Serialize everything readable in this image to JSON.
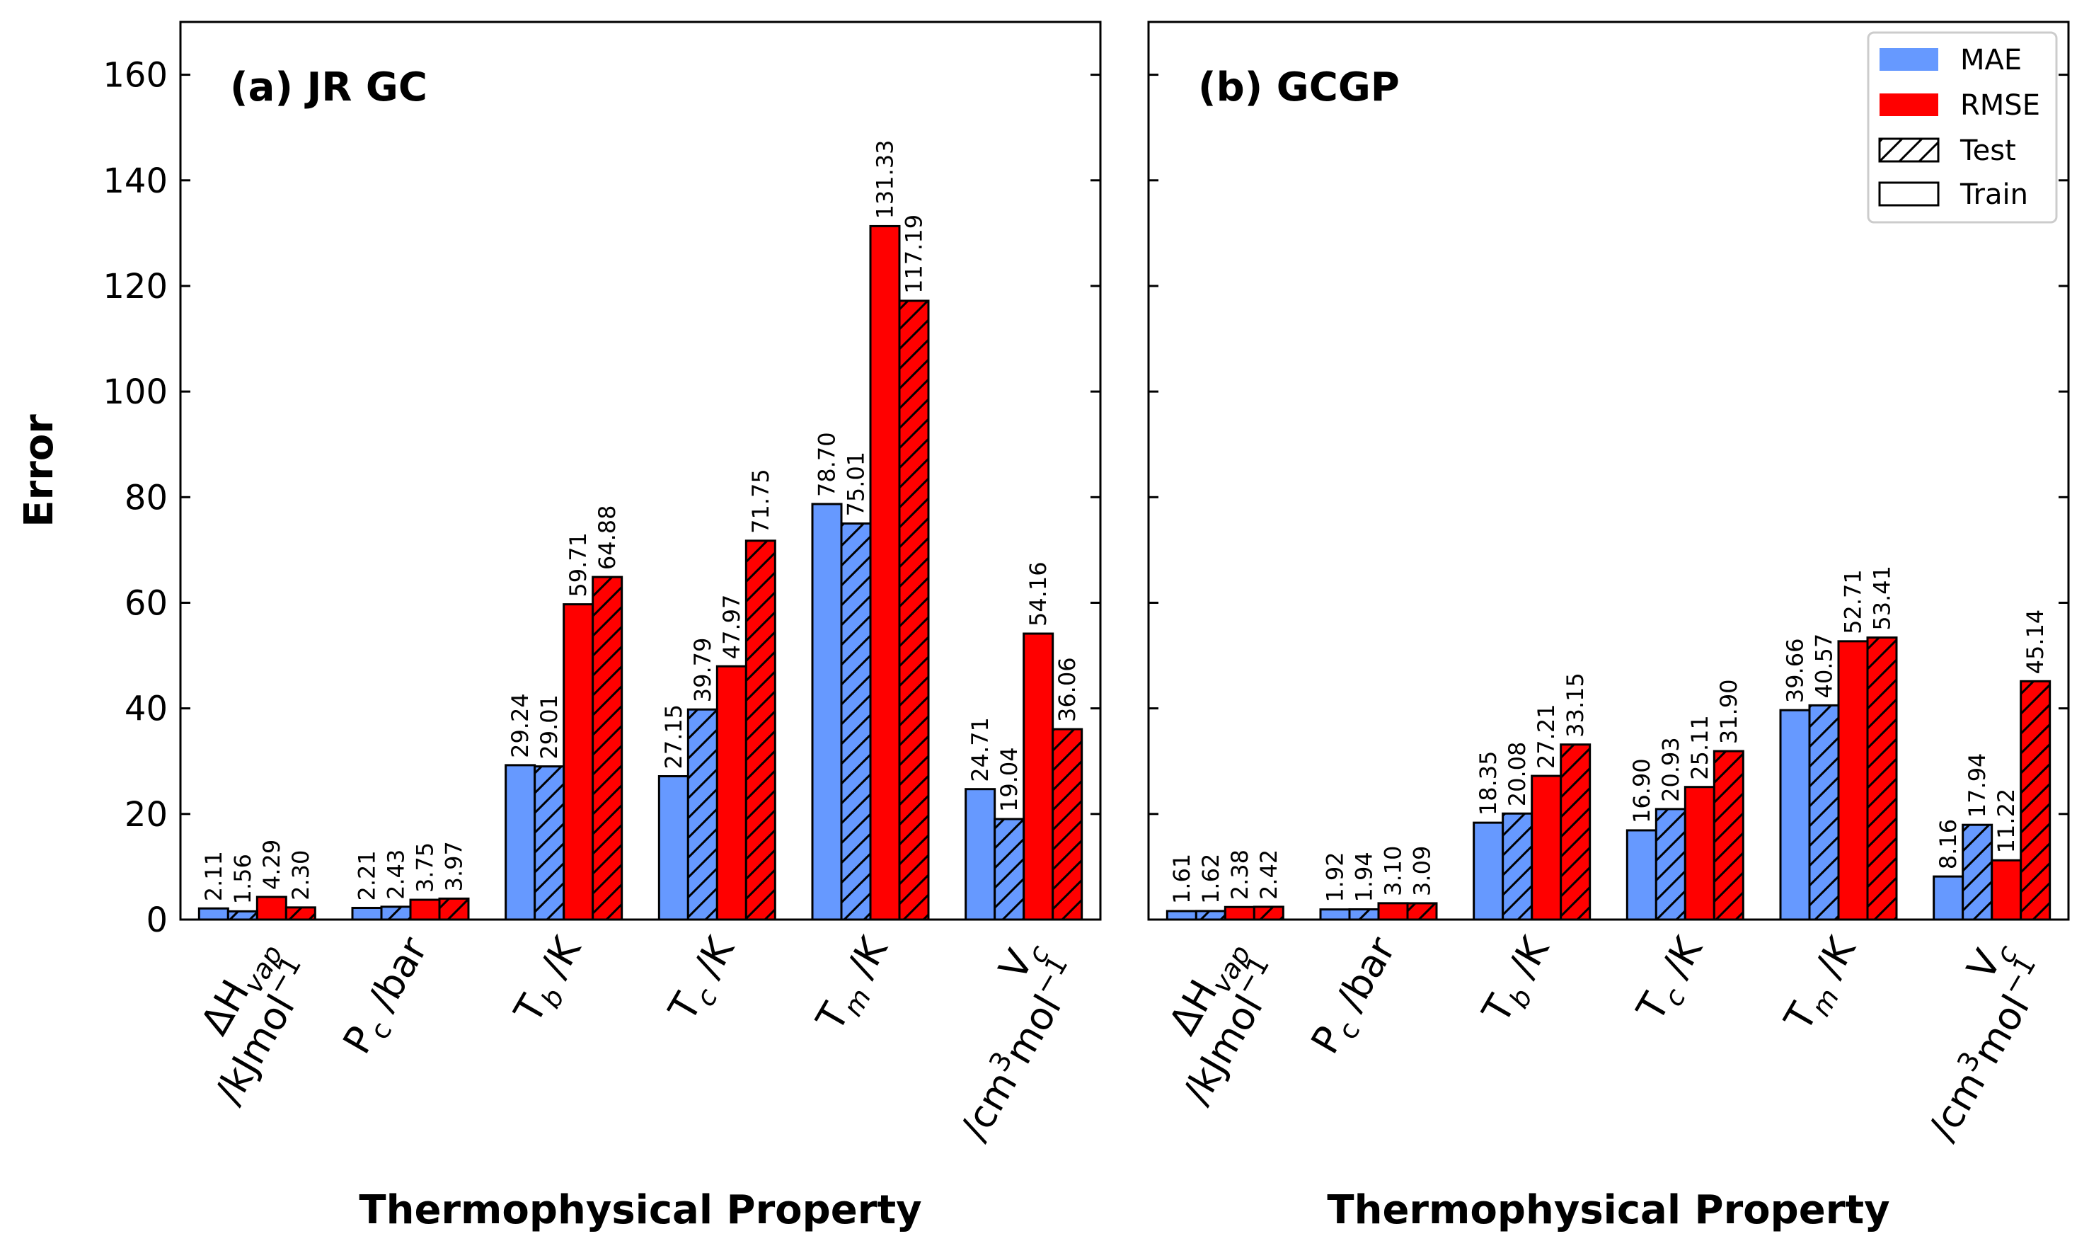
{
  "colors": {
    "mae": "#6699ff",
    "rmse": "#ff0000",
    "edge": "#000000"
  },
  "legend": {
    "placement": "upper right of panel b",
    "items": [
      "MAE",
      "RMSE",
      "Test",
      "Train"
    ]
  },
  "chart_data": [
    {
      "type": "bar",
      "title": "(a) JR GC",
      "xlabel": "Thermophysical Property",
      "ylabel": "Error",
      "ylim": [
        0,
        170
      ],
      "yticks": [
        0,
        20,
        40,
        60,
        80,
        100,
        120,
        140,
        160
      ],
      "categories": [
        "ΔH_vap /kJmol⁻¹",
        "P_c /bar",
        "T_b /K",
        "T_c /K",
        "T_m /K",
        "V_c /cm³mol⁻¹"
      ],
      "series": [
        {
          "name": "MAE Train",
          "metric": "MAE",
          "split": "Train",
          "values": [
            2.11,
            2.21,
            29.24,
            27.15,
            78.7,
            24.71
          ],
          "labels": [
            "2.11",
            "2.21",
            "29.24",
            "27.15",
            "78.70",
            "24.71"
          ]
        },
        {
          "name": "MAE Test",
          "metric": "MAE",
          "split": "Test",
          "values": [
            1.56,
            2.43,
            29.01,
            39.79,
            75.01,
            19.04
          ],
          "labels": [
            "1.56",
            "2.43",
            "29.01",
            "39.79",
            "75.01",
            "19.04"
          ]
        },
        {
          "name": "RMSE Train",
          "metric": "RMSE",
          "split": "Train",
          "values": [
            4.29,
            3.75,
            59.71,
            47.97,
            131.33,
            54.16
          ],
          "labels": [
            "4.29",
            "3.75",
            "59.71",
            "47.97",
            "131.33",
            "54.16"
          ]
        },
        {
          "name": "RMSE Test",
          "metric": "RMSE",
          "split": "Test",
          "values": [
            2.3,
            3.97,
            64.88,
            71.75,
            117.19,
            36.06
          ],
          "labels": [
            "2.30",
            "3.97",
            "64.88",
            "71.75",
            "117.19",
            "36.06"
          ]
        }
      ]
    },
    {
      "type": "bar",
      "title": "(b) GCGP",
      "xlabel": "Thermophysical Property",
      "ylabel": "",
      "ylim": [
        0,
        170
      ],
      "yticks": [
        0,
        20,
        40,
        60,
        80,
        100,
        120,
        140,
        160
      ],
      "categories": [
        "ΔH_vap /kJmol⁻¹",
        "P_c /bar",
        "T_b /K",
        "T_c /K",
        "T_m /K",
        "V_c /cm³mol⁻¹"
      ],
      "series": [
        {
          "name": "MAE Train",
          "metric": "MAE",
          "split": "Train",
          "values": [
            1.61,
            1.92,
            18.35,
            16.9,
            39.66,
            8.16
          ],
          "labels": [
            "1.61",
            "1.92",
            "18.35",
            "16.90",
            "39.66",
            "8.16"
          ]
        },
        {
          "name": "MAE Test",
          "metric": "MAE",
          "split": "Test",
          "values": [
            1.62,
            1.94,
            20.08,
            20.93,
            40.57,
            17.94
          ],
          "labels": [
            "1.62",
            "1.94",
            "20.08",
            "20.93",
            "40.57",
            "17.94"
          ]
        },
        {
          "name": "RMSE Train",
          "metric": "RMSE",
          "split": "Train",
          "values": [
            2.38,
            3.1,
            27.21,
            25.11,
            52.71,
            11.22
          ],
          "labels": [
            "2.38",
            "3.10",
            "27.21",
            "25.11",
            "52.71",
            "11.22"
          ]
        },
        {
          "name": "RMSE Test",
          "metric": "RMSE",
          "split": "Test",
          "values": [
            2.42,
            3.09,
            33.15,
            31.9,
            53.41,
            45.14
          ],
          "labels": [
            "2.42",
            "3.09",
            "33.15",
            "31.90",
            "53.41",
            "45.14"
          ]
        }
      ]
    }
  ]
}
